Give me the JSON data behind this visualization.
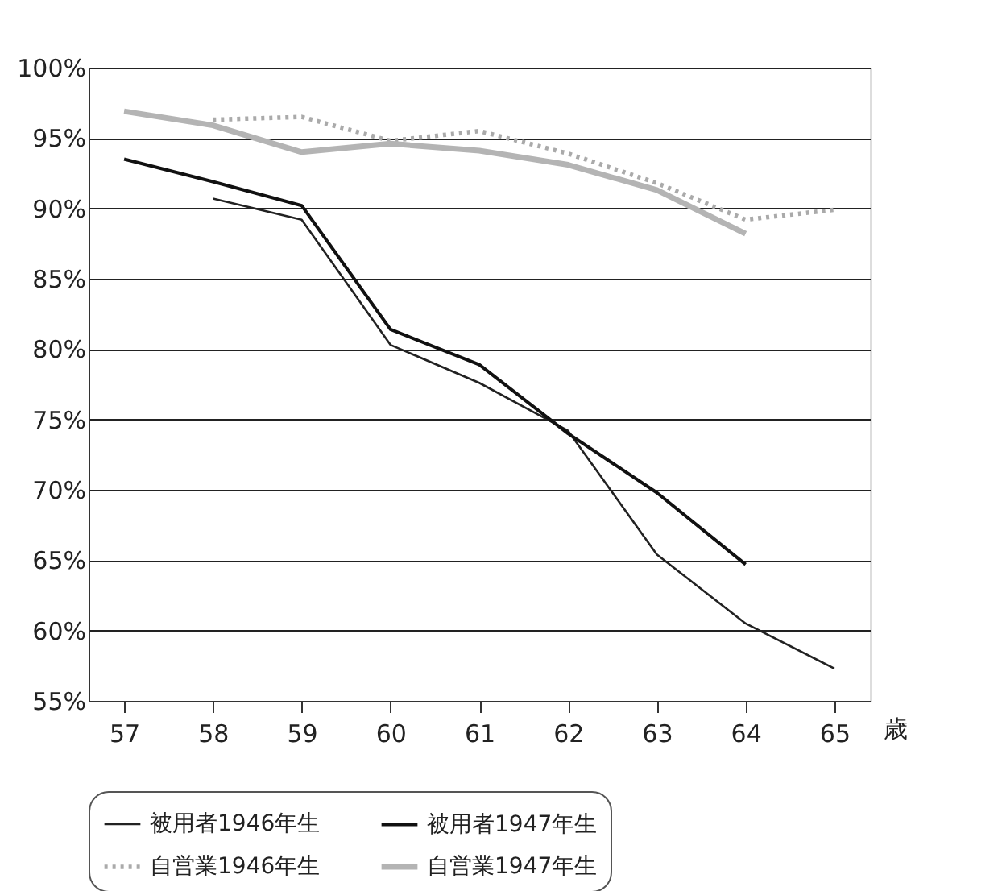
{
  "chart_data": {
    "type": "line",
    "categories": [
      "57",
      "58",
      "59",
      "60",
      "61",
      "62",
      "63",
      "64",
      "65"
    ],
    "xlabel": "歳",
    "series": [
      {
        "name": "被用者1946年生",
        "color": "#222222",
        "line_style": "solid",
        "values": [
          null,
          90.7,
          89.2,
          80.3,
          77.6,
          74.2,
          65.4,
          60.5,
          57.3
        ]
      },
      {
        "name": "被用者1947年生",
        "color": "#111111",
        "line_style": "solid",
        "values": [
          93.5,
          91.9,
          90.2,
          81.4,
          78.9,
          74.0,
          69.8,
          64.7,
          null
        ]
      },
      {
        "name": "自営業1946年生",
        "color": "#aaaaaa",
        "line_style": "dotted",
        "values": [
          null,
          96.3,
          96.5,
          94.8,
          95.5,
          93.9,
          91.8,
          89.2,
          89.9
        ]
      },
      {
        "name": "自営業1947年生",
        "color": "#b4b4b4",
        "line_style": "solid",
        "values": [
          96.9,
          95.9,
          94.0,
          94.6,
          94.1,
          93.1,
          91.3,
          88.2,
          null
        ]
      }
    ],
    "ylim": [
      55,
      100
    ],
    "yticks": [
      {
        "value": 55,
        "label": "55%"
      },
      {
        "value": 60,
        "label": "60%"
      },
      {
        "value": 65,
        "label": "65%"
      },
      {
        "value": 70,
        "label": "70%"
      },
      {
        "value": 75,
        "label": "75%"
      },
      {
        "value": 80,
        "label": "80%"
      },
      {
        "value": 85,
        "label": "85%"
      },
      {
        "value": 90,
        "label": "90%"
      },
      {
        "value": 95,
        "label": "95%"
      },
      {
        "value": 100,
        "label": "100%"
      }
    ],
    "grid": "y",
    "legend": "bottom",
    "marker": "none"
  }
}
